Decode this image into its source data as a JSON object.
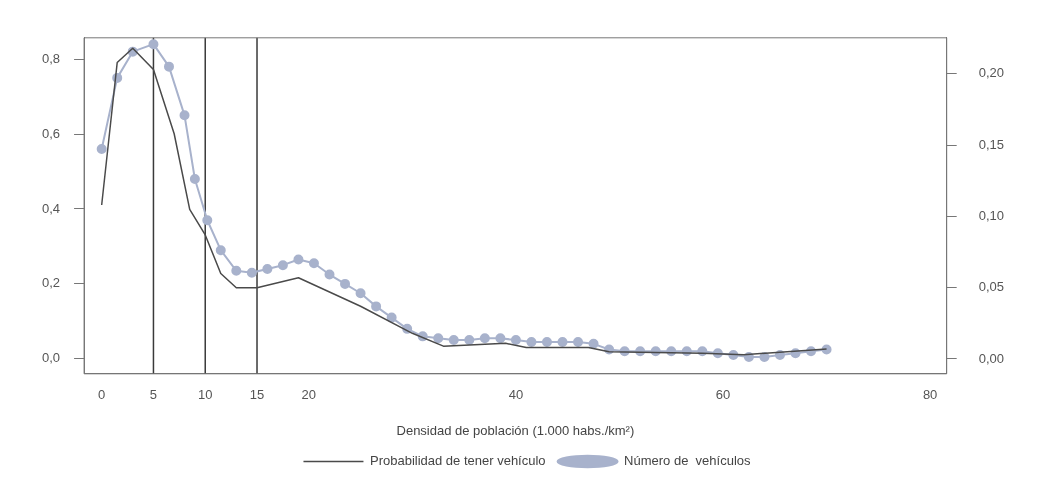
{
  "chart_data": {
    "type": "line",
    "xlabel": "Densidad de población (1.000 habs./km²)",
    "xlim": [
      -1.7,
      81.6
    ],
    "xticks": [
      0,
      5,
      10,
      15,
      20,
      40,
      60,
      80
    ],
    "ylim": [
      -0.04,
      0.857
    ],
    "yticks": [
      {
        "value": 0,
        "label": "0,0"
      },
      {
        "value": 0.2,
        "label": "0,2"
      },
      {
        "value": 0.4,
        "label": "0,4"
      },
      {
        "value": 0.6,
        "label": "0,6"
      },
      {
        "value": 0.8,
        "label": "0,8"
      }
    ],
    "y2lim": [
      -0.0104,
      0.2253
    ],
    "y2ticks": [
      {
        "value": 0,
        "label": "0,00"
      },
      {
        "value": 0.05,
        "label": "0,05"
      },
      {
        "value": 0.1,
        "label": "0,10"
      },
      {
        "value": 0.15,
        "label": "0,15"
      },
      {
        "value": 0.2,
        "label": "0,20"
      }
    ],
    "grid": false,
    "legend": "bottom",
    "series": [
      {
        "name": "Número de  vehículos",
        "color": "#a8b2cc",
        "marker": "circle",
        "x": [
          0,
          1.5,
          3,
          5,
          6.5,
          8,
          9,
          10.2,
          11.5,
          13,
          14.5,
          16,
          17.5,
          19,
          20.5,
          22,
          23.5,
          25,
          26.5,
          28,
          29.5,
          31,
          32.5,
          34,
          35.5,
          37,
          38.5,
          40,
          41.5,
          43,
          44.5,
          46,
          47.5,
          49,
          50.5,
          52,
          53.5,
          55,
          56.5,
          58,
          59.5,
          61,
          62.5,
          64,
          65.5,
          67,
          68.5,
          70
        ],
        "values": [
          0.56,
          0.75,
          0.82,
          0.84,
          0.78,
          0.65,
          0.48,
          0.37,
          0.29,
          0.235,
          0.23,
          0.24,
          0.25,
          0.265,
          0.255,
          0.225,
          0.2,
          0.175,
          0.14,
          0.11,
          0.08,
          0.06,
          0.055,
          0.05,
          0.05,
          0.055,
          0.055,
          0.05,
          0.045,
          0.045,
          0.045,
          0.045,
          0.04,
          0.025,
          0.02,
          0.02,
          0.02,
          0.02,
          0.02,
          0.02,
          0.015,
          0.01,
          0.005,
          0.005,
          0.01,
          0.015,
          0.02,
          0.025
        ]
      },
      {
        "name": "Probabilidad de tener vehículo",
        "color": "#4a4a4a",
        "marker": "none",
        "axis": "y2",
        "x": [
          0,
          1.5,
          3,
          5,
          7,
          8.5,
          10,
          11.5,
          13,
          15,
          19,
          25,
          30,
          33,
          39,
          41,
          47,
          49,
          58,
          62,
          70
        ],
        "values": [
          0.108,
          0.208,
          0.218,
          0.203,
          0.158,
          0.105,
          0.087,
          0.06,
          0.05,
          0.05,
          0.057,
          0.037,
          0.018,
          0.009,
          0.011,
          0.008,
          0.008,
          0.005,
          0.004,
          0.003,
          0.007
        ]
      }
    ],
    "ref_lines": [
      {
        "axis": "x",
        "value": 5,
        "color": "#3a3a3a"
      },
      {
        "axis": "x",
        "value": 10,
        "color": "#3a3a3a"
      },
      {
        "axis": "x",
        "value": 15,
        "color": "#3a3a3a"
      }
    ]
  }
}
